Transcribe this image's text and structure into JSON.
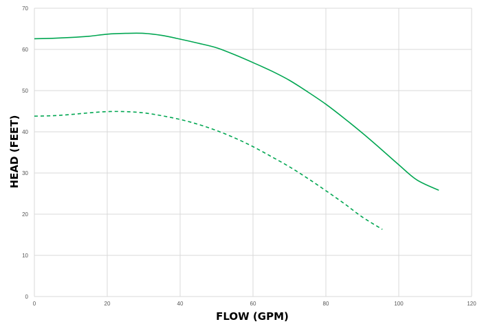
{
  "chart_data": {
    "type": "line",
    "title": "",
    "xlabel": "FLOW (GPM)",
    "ylabel": "HEAD (FEET)",
    "xlim": [
      0,
      120
    ],
    "ylim": [
      0,
      70
    ],
    "xticks": [
      0,
      20,
      40,
      60,
      80,
      100,
      120
    ],
    "yticks": [
      0,
      10,
      20,
      30,
      40,
      50,
      60,
      70
    ],
    "grid": true,
    "legend": "none",
    "colors": {
      "series": "#00a651",
      "grid": "#d9d9d9",
      "tick_text": "#555555"
    },
    "series": [
      {
        "style": "solid",
        "x": [
          0,
          5,
          10,
          15,
          20,
          25,
          30,
          35,
          40,
          45,
          50,
          55,
          60,
          65,
          70,
          75,
          80,
          85,
          90,
          95,
          100,
          105,
          111
        ],
        "y": [
          62.6,
          62.7,
          62.9,
          63.2,
          63.7,
          63.9,
          63.9,
          63.4,
          62.5,
          61.5,
          60.4,
          58.7,
          56.8,
          54.8,
          52.5,
          49.7,
          46.7,
          43.3,
          39.7,
          35.9,
          32.0,
          28.3,
          25.8
        ]
      },
      {
        "style": "dashed",
        "x": [
          0,
          5,
          10,
          15,
          20,
          25,
          30,
          35,
          40,
          45,
          50,
          55,
          60,
          65,
          70,
          75,
          80,
          85,
          90,
          95.5
        ],
        "y": [
          43.8,
          43.9,
          44.2,
          44.6,
          44.9,
          44.9,
          44.6,
          43.9,
          43.0,
          41.8,
          40.3,
          38.5,
          36.4,
          34.0,
          31.5,
          28.7,
          25.7,
          22.6,
          19.3,
          16.3
        ]
      }
    ]
  }
}
